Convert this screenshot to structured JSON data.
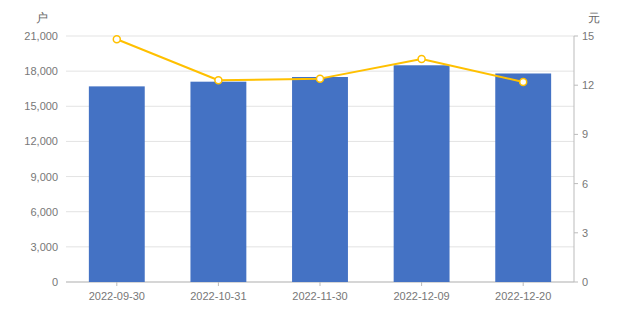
{
  "chart_data": {
    "type": "bar",
    "categories": [
      "2022-09-30",
      "2022-10-31",
      "2022-11-30",
      "2022-12-09",
      "2022-12-20"
    ],
    "series": [
      {
        "type": "bar",
        "color": "#4472C4",
        "values": [
          16700,
          17100,
          17500,
          18500,
          17800
        ]
      },
      {
        "type": "line",
        "axis": "y2",
        "color": "#FFC000",
        "marker": "circle",
        "values": [
          14.8,
          12.3,
          12.4,
          13.6,
          12.2
        ]
      }
    ],
    "ylabel": "户",
    "y2label": "元",
    "ylim": [
      0,
      21000
    ],
    "yticks": [
      0,
      {
        "value": 3000,
        "label": "3,000"
      },
      {
        "value": 6000,
        "label": "6,000"
      },
      {
        "value": 9000,
        "label": "9,000"
      },
      {
        "value": 12000,
        "label": "12,000"
      },
      {
        "value": 15000,
        "label": "15,000"
      },
      {
        "value": 18000,
        "label": "18,000"
      },
      {
        "value": 21000,
        "label": "21,000"
      }
    ],
    "y2lim": [
      0,
      15
    ],
    "y2ticks": [
      0,
      3,
      6,
      9,
      12,
      15
    ],
    "grid": true
  }
}
